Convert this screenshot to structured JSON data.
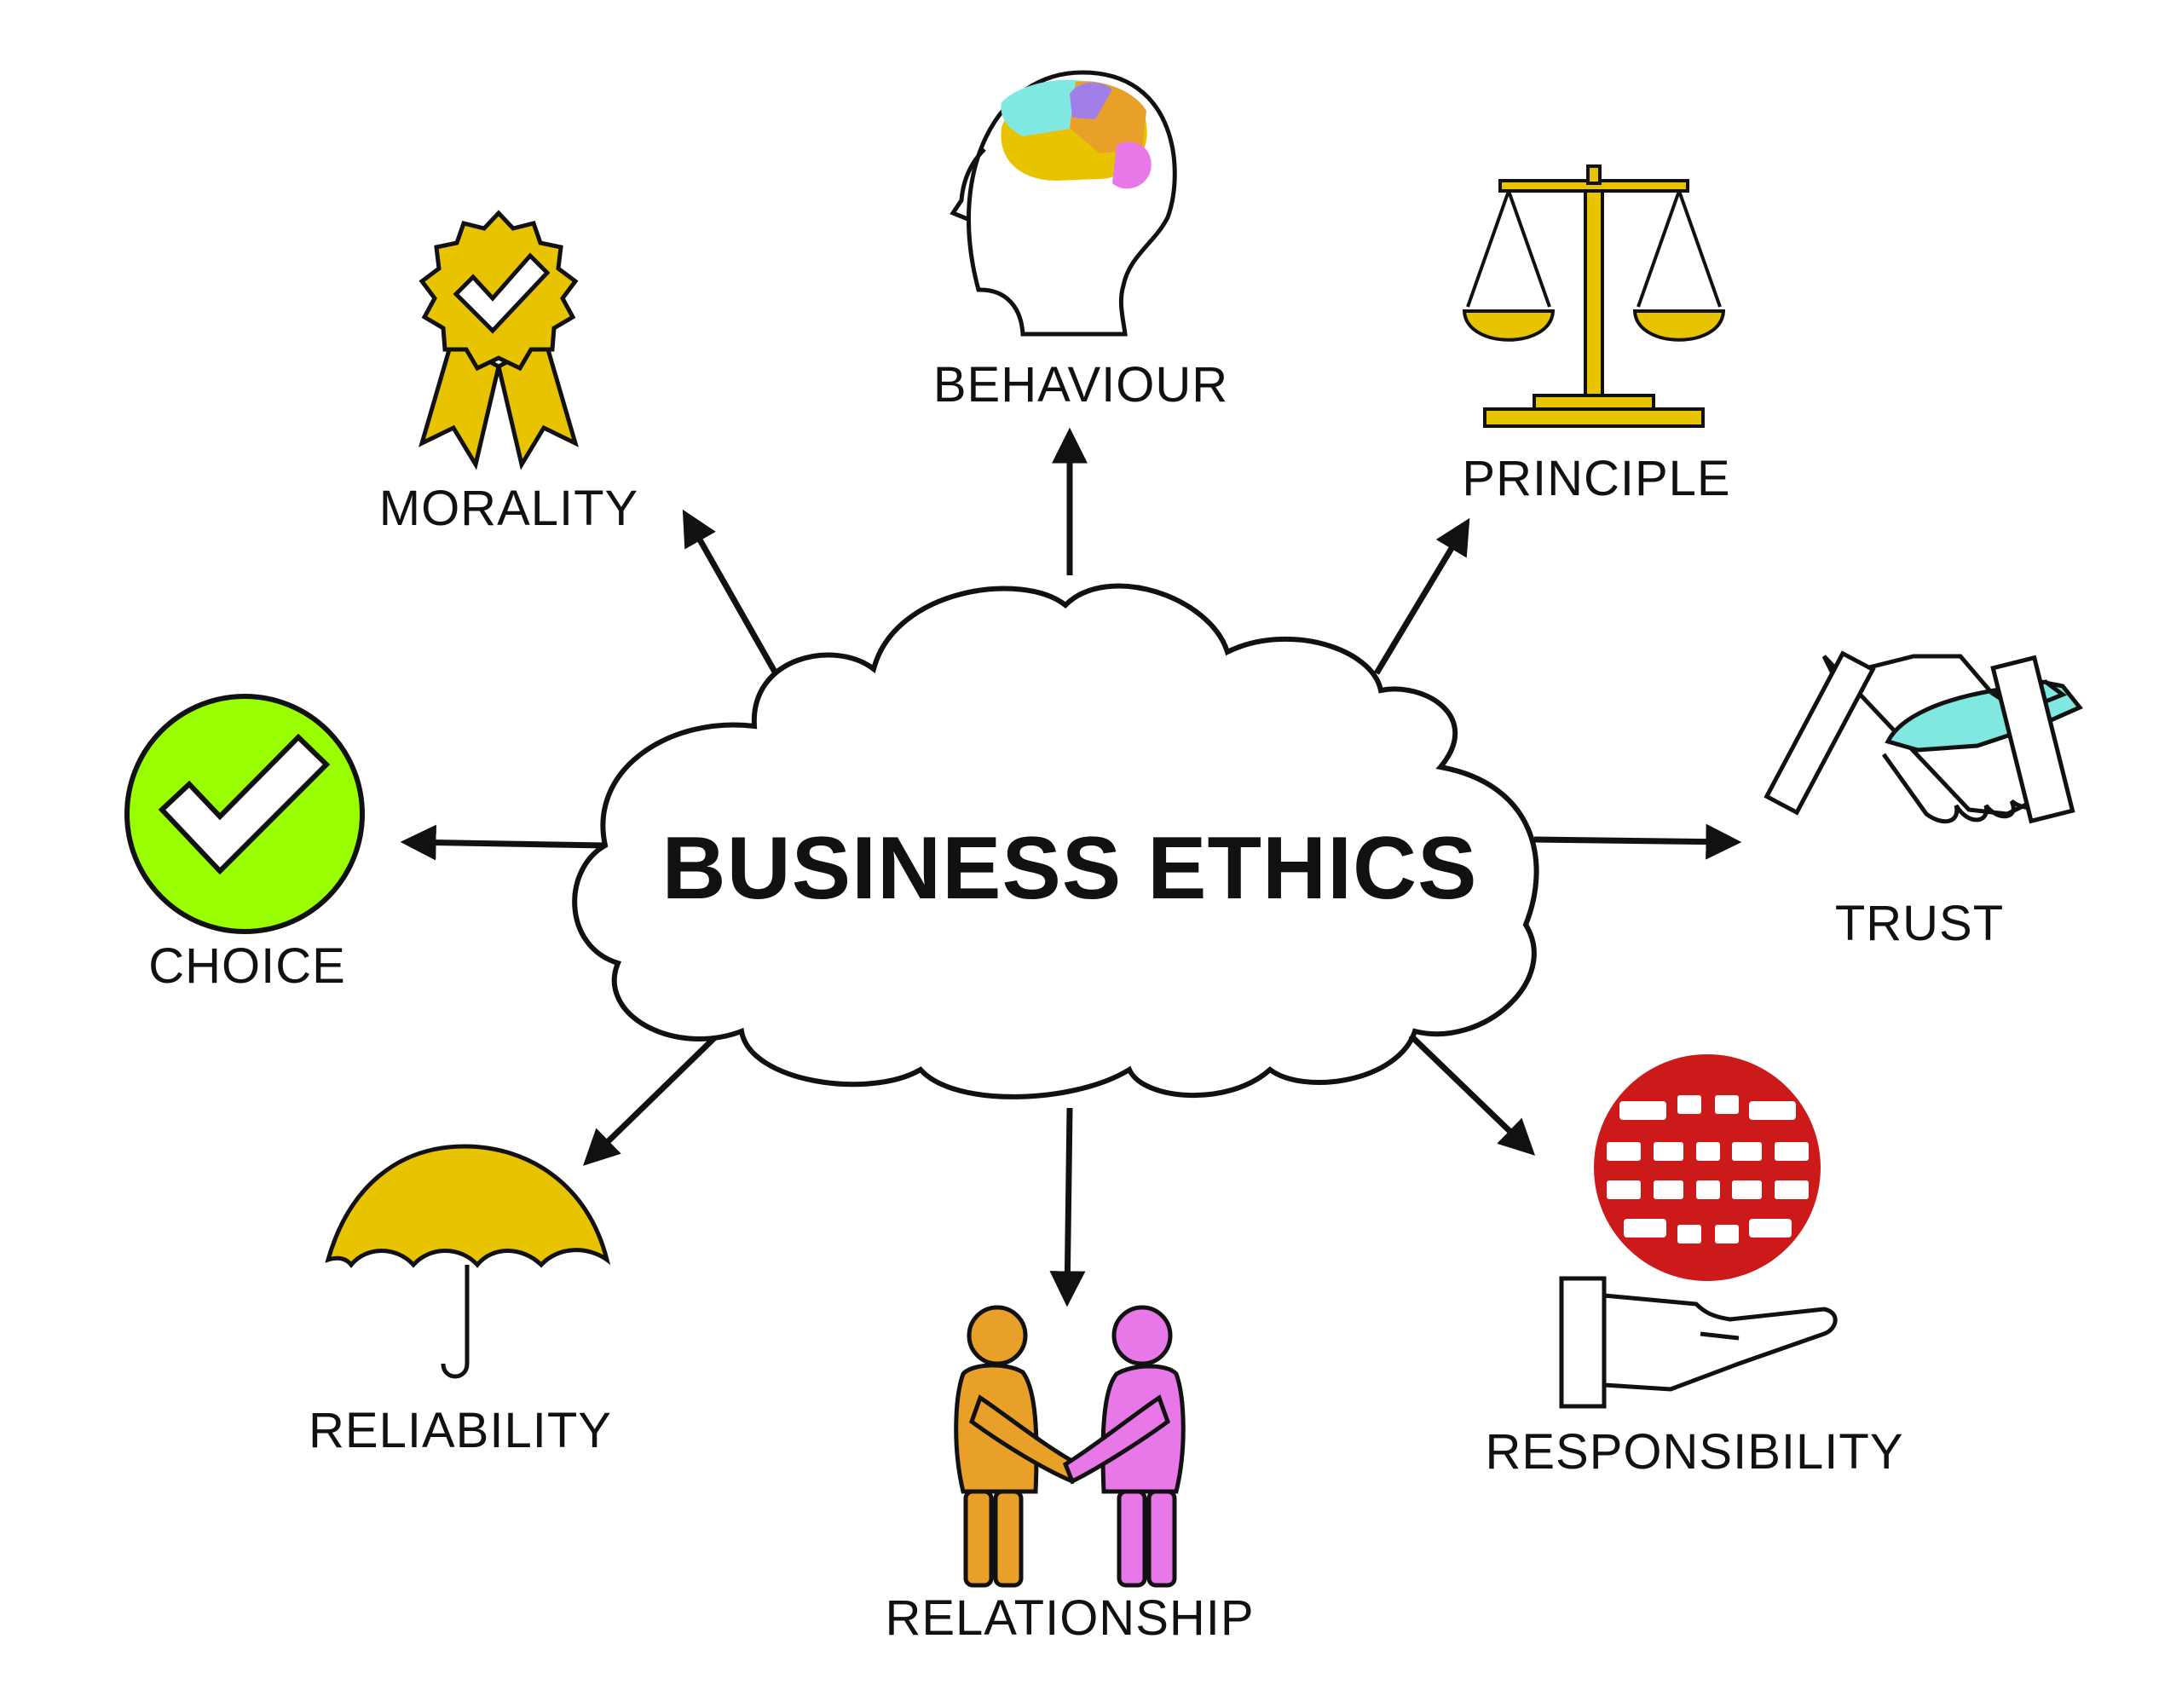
{
  "center": {
    "title": "BUSINESS ETHICS"
  },
  "nodes": [
    {
      "id": "behaviour",
      "label": "BEHAVIOUR",
      "icon": "head-brain-icon"
    },
    {
      "id": "principle",
      "label": "PRINCIPLE",
      "icon": "scales-icon"
    },
    {
      "id": "trust",
      "label": "TRUST",
      "icon": "handshake-icon"
    },
    {
      "id": "responsibility",
      "label": "RESPONSIBILITY",
      "icon": "globe-in-hand-icon"
    },
    {
      "id": "relationship",
      "label": "RELATIONSHIP",
      "icon": "two-people-icon"
    },
    {
      "id": "reliability",
      "label": "RELIABILITY",
      "icon": "umbrella-icon"
    },
    {
      "id": "choice",
      "label": "CHOICE",
      "icon": "check-circle-icon"
    },
    {
      "id": "morality",
      "label": "MORALITY",
      "icon": "award-ribbon-icon"
    }
  ],
  "colors": {
    "yellow": "#e8c400",
    "green": "#99ff00",
    "teal": "#80e8e0",
    "red": "#cc1a1a",
    "orange": "#e8a028",
    "pink": "#e878e8",
    "outline": "#111111"
  }
}
